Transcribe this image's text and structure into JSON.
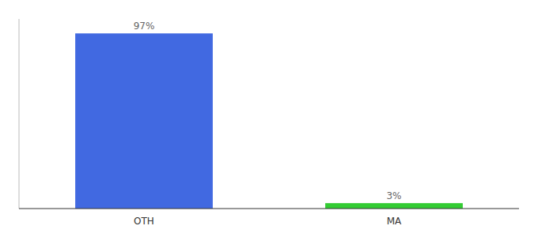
{
  "chart_data": {
    "type": "bar",
    "categories": [
      "OTH",
      "MA"
    ],
    "values": [
      97,
      3
    ],
    "value_labels": [
      "97%",
      "3%"
    ],
    "colors": [
      "#4169e1",
      "#33cc33"
    ],
    "ylim": [
      0,
      105
    ],
    "data_labels": true,
    "tick_labels": "x",
    "grid": false
  }
}
